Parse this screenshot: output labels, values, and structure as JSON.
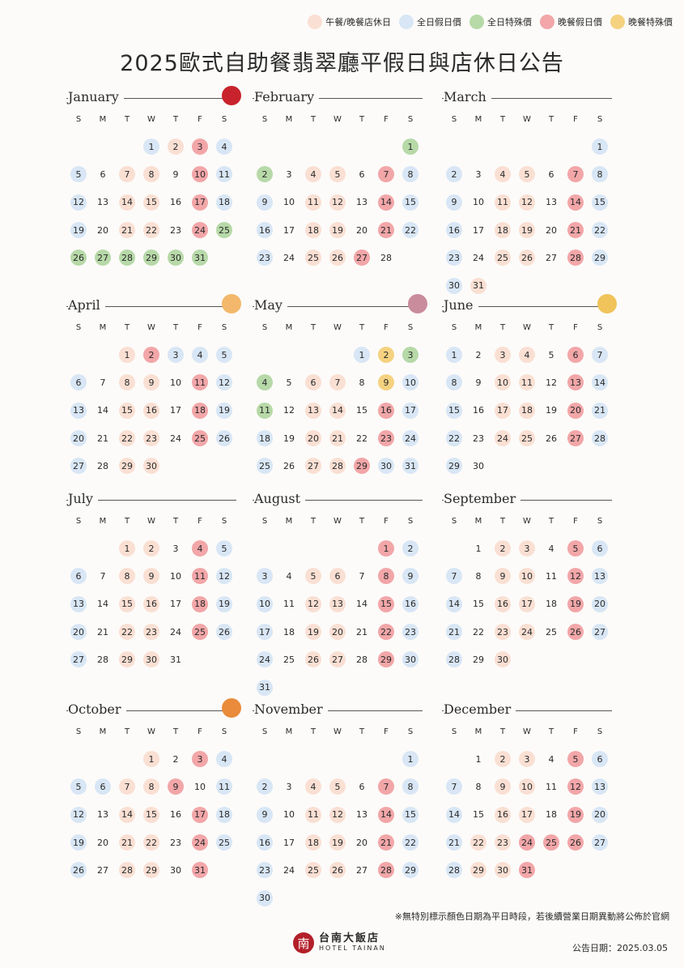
{
  "legend": [
    {
      "label": "午餐/晚餐店休日",
      "color": "#fadfd3"
    },
    {
      "label": "全日假日價",
      "color": "#d8e6f5"
    },
    {
      "label": "全日特殊價",
      "color": "#b7d9a8"
    },
    {
      "label": "晚餐假日價",
      "color": "#f2a6a8"
    },
    {
      "label": "晚餐特殊價",
      "color": "#f5d280"
    }
  ],
  "title": "2025歐式自助餐翡翠廳平假日與店休日公告",
  "weekdays": [
    "S",
    "M",
    "T",
    "W",
    "T",
    "F",
    "S"
  ],
  "months": [
    {
      "name": "January",
      "start": 3,
      "days": 31,
      "deco": "cny-stamp-icon",
      "lunch": [
        2,
        7,
        8,
        14,
        15,
        21,
        22
      ],
      "holiday": [
        1,
        4,
        5,
        11,
        12,
        18,
        19
      ],
      "special": [
        25,
        26,
        27,
        28,
        29,
        30,
        31
      ],
      "dinnerhol": [
        3,
        10,
        17,
        24
      ],
      "dinnerspec": []
    },
    {
      "name": "February",
      "start": 6,
      "days": 28,
      "deco": "",
      "lunch": [
        4,
        5,
        11,
        12,
        18,
        19,
        25,
        26
      ],
      "holiday": [
        8,
        9,
        15,
        16,
        22,
        23
      ],
      "special": [
        1,
        2
      ],
      "dinnerhol": [
        7,
        14,
        21,
        27
      ],
      "dinnerspec": []
    },
    {
      "name": "March",
      "start": 6,
      "days": 31,
      "deco": "",
      "lunch": [
        4,
        5,
        11,
        12,
        18,
        19,
        25,
        26,
        31
      ],
      "holiday": [
        1,
        2,
        8,
        9,
        15,
        16,
        22,
        23,
        29,
        30
      ],
      "special": [],
      "dinnerhol": [
        7,
        14,
        21,
        28
      ],
      "dinnerspec": []
    },
    {
      "name": "April",
      "start": 2,
      "days": 30,
      "deco": "balloon-icon",
      "lunch": [
        1,
        8,
        9,
        15,
        16,
        22,
        23,
        29,
        30
      ],
      "holiday": [
        3,
        4,
        5,
        6,
        12,
        13,
        19,
        20,
        26,
        27
      ],
      "special": [],
      "dinnerhol": [
        2,
        11,
        18,
        25
      ],
      "dinnerspec": []
    },
    {
      "name": "May",
      "start": 4,
      "days": 31,
      "deco": "mother-day-icon",
      "lunch": [
        6,
        7,
        13,
        14,
        20,
        21,
        27,
        28
      ],
      "holiday": [
        1,
        10,
        17,
        18,
        24,
        25,
        30,
        31
      ],
      "special": [
        3,
        4,
        11
      ],
      "dinnerhol": [
        16,
        23,
        29
      ],
      "dinnerspec": [
        2,
        9
      ]
    },
    {
      "name": "June",
      "start": 0,
      "days": 30,
      "deco": "rice-dumpling-icon",
      "lunch": [
        3,
        4,
        10,
        11,
        17,
        18,
        24,
        25
      ],
      "holiday": [
        1,
        7,
        8,
        14,
        15,
        21,
        22,
        28,
        29
      ],
      "special": [],
      "dinnerhol": [
        6,
        13,
        20,
        27
      ],
      "dinnerspec": []
    },
    {
      "name": "July",
      "start": 2,
      "days": 31,
      "deco": "",
      "lunch": [
        1,
        2,
        8,
        9,
        15,
        16,
        22,
        23,
        29,
        30
      ],
      "holiday": [
        5,
        6,
        12,
        13,
        19,
        20,
        26,
        27
      ],
      "special": [],
      "dinnerhol": [
        4,
        11,
        18,
        25
      ],
      "dinnerspec": []
    },
    {
      "name": "August",
      "start": 5,
      "days": 31,
      "deco": "",
      "lunch": [
        5,
        6,
        12,
        13,
        19,
        20,
        26,
        27
      ],
      "holiday": [
        2,
        3,
        9,
        10,
        16,
        17,
        23,
        24,
        30,
        31
      ],
      "special": [],
      "dinnerhol": [
        1,
        8,
        15,
        22,
        29
      ],
      "dinnerspec": []
    },
    {
      "name": "September",
      "start": 1,
      "days": 30,
      "deco": "",
      "lunch": [
        2,
        3,
        9,
        10,
        16,
        17,
        23,
        24,
        30
      ],
      "holiday": [
        6,
        7,
        13,
        14,
        20,
        21,
        27,
        28
      ],
      "special": [],
      "dinnerhol": [
        5,
        12,
        19,
        26
      ],
      "dinnerspec": []
    },
    {
      "name": "October",
      "start": 3,
      "days": 31,
      "deco": "mooncake-icon",
      "lunch": [
        1,
        7,
        8,
        14,
        15,
        21,
        22,
        28,
        29
      ],
      "holiday": [
        4,
        5,
        6,
        11,
        12,
        18,
        19,
        25,
        26
      ],
      "special": [],
      "dinnerhol": [
        3,
        9,
        17,
        24,
        31
      ],
      "dinnerspec": []
    },
    {
      "name": "November",
      "start": 6,
      "days": 30,
      "deco": "",
      "lunch": [
        4,
        5,
        11,
        12,
        18,
        19,
        25,
        26
      ],
      "holiday": [
        1,
        2,
        8,
        9,
        15,
        16,
        22,
        23,
        29,
        30
      ],
      "special": [],
      "dinnerhol": [
        7,
        14,
        21,
        28
      ],
      "dinnerspec": []
    },
    {
      "name": "December",
      "start": 1,
      "days": 31,
      "deco": "",
      "lunch": [
        2,
        3,
        9,
        10,
        16,
        17,
        22,
        23,
        29,
        30
      ],
      "holiday": [
        6,
        7,
        13,
        14,
        20,
        21,
        27,
        28
      ],
      "special": [],
      "dinnerhol": [
        5,
        12,
        19,
        24,
        25,
        26,
        31
      ],
      "dinnerspec": []
    }
  ],
  "note": "※無特別標示顏色日期為平日時段，若後續營業日期異動將公佈於官網",
  "logo": {
    "mark": "南",
    "cn": "台南大飯店",
    "en": "HOTEL TAINAN"
  },
  "date": "公告日期：2025.03.05"
}
